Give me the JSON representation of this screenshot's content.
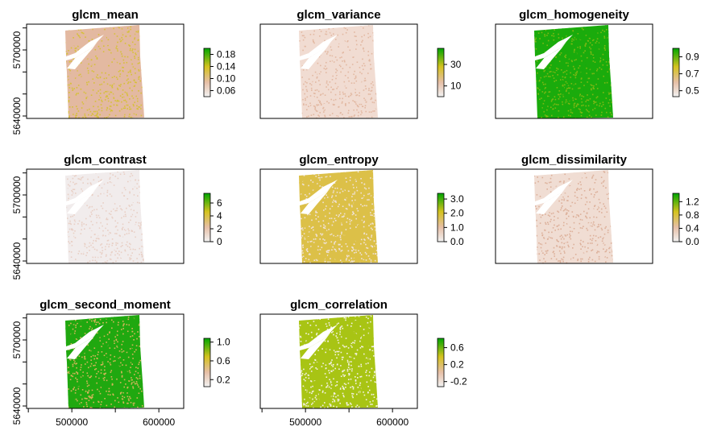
{
  "chart_data": [
    {
      "type": "heatmap",
      "title": "glcm_mean",
      "legend_ticks": [
        "0.06",
        "0.10",
        "0.14",
        "0.18"
      ],
      "legend_range": [
        0.04,
        0.2
      ],
      "colors": {
        "low": "#f2f2f2",
        "mid1": "#e6bfa6",
        "mid2": "#d4c21e",
        "high": "#00a600",
        "base": "#e3b9a1",
        "accent": "#d6c03a"
      },
      "y_ticks": [
        "5640000",
        "5700000"
      ],
      "x_ticks": []
    },
    {
      "type": "heatmap",
      "title": "glcm_variance",
      "legend_ticks": [
        "10",
        "30"
      ],
      "legend_range": [
        0,
        45
      ],
      "colors": {
        "low": "#f2f2f2",
        "mid1": "#e6bfa6",
        "mid2": "#d4c21e",
        "high": "#00a600",
        "base": "#f1dcd2",
        "accent": "#e2b8a2"
      },
      "y_ticks": [],
      "x_ticks": []
    },
    {
      "type": "heatmap",
      "title": "glcm_homogeneity",
      "legend_ticks": [
        "0.5",
        "0.7",
        "0.9"
      ],
      "legend_range": [
        0.43,
        1.0
      ],
      "colors": {
        "low": "#f2f2f2",
        "mid1": "#e6bfa6",
        "mid2": "#d4c21e",
        "high": "#00a600",
        "base": "#1aab0c",
        "accent": "#7db814"
      },
      "y_ticks": [],
      "x_ticks": []
    },
    {
      "type": "heatmap",
      "title": "glcm_contrast",
      "legend_ticks": [
        "0",
        "2",
        "4",
        "6"
      ],
      "legend_range": [
        0,
        7.5
      ],
      "colors": {
        "low": "#f2f2f2",
        "mid1": "#e6bfa6",
        "mid2": "#d4c21e",
        "high": "#00a600",
        "base": "#f1ecec",
        "accent": "#e8cfc5"
      },
      "y_ticks": [
        "5640000",
        "5700000"
      ],
      "x_ticks": []
    },
    {
      "type": "heatmap",
      "title": "glcm_entropy",
      "legend_ticks": [
        "0.0",
        "1.0",
        "2.0",
        "3.0"
      ],
      "legend_range": [
        0,
        3.4
      ],
      "colors": {
        "low": "#f2f2f2",
        "mid1": "#e6bfa6",
        "mid2": "#d4c21e",
        "high": "#00a600",
        "base": "#dcc048",
        "accent": "#f0e2d8"
      },
      "y_ticks": [],
      "x_ticks": []
    },
    {
      "type": "heatmap",
      "title": "glcm_dissimilarity",
      "legend_ticks": [
        "0.0",
        "0.4",
        "0.8",
        "1.2"
      ],
      "legend_range": [
        0,
        1.45
      ],
      "colors": {
        "low": "#f2f2f2",
        "mid1": "#e6bfa6",
        "mid2": "#d4c21e",
        "high": "#00a600",
        "base": "#f0ddd3",
        "accent": "#dcb09a"
      },
      "y_ticks": [],
      "x_ticks": []
    },
    {
      "type": "heatmap",
      "title": "glcm_second_moment",
      "legend_ticks": [
        "0.2",
        "0.6",
        "1.0"
      ],
      "legend_range": [
        0.05,
        1.08
      ],
      "colors": {
        "low": "#f2f2f2",
        "mid1": "#e6bfa6",
        "mid2": "#d4c21e",
        "high": "#00a600",
        "base": "#20a810",
        "accent": "#d5b55a"
      },
      "y_ticks": [
        "5640000",
        "5700000"
      ],
      "x_ticks": [
        "500000",
        "600000"
      ]
    },
    {
      "type": "heatmap",
      "title": "glcm_correlation",
      "legend_ticks": [
        "-0.2",
        "0.2",
        "0.6"
      ],
      "legend_range": [
        -0.32,
        0.82
      ],
      "colors": {
        "low": "#f2f2f2",
        "mid1": "#e6bfa6",
        "mid2": "#d4c21e",
        "high": "#00a600",
        "base": "#a8c414",
        "accent": "#f6f2e6"
      },
      "y_ticks": [],
      "x_ticks": [
        "500000",
        "600000"
      ]
    }
  ]
}
